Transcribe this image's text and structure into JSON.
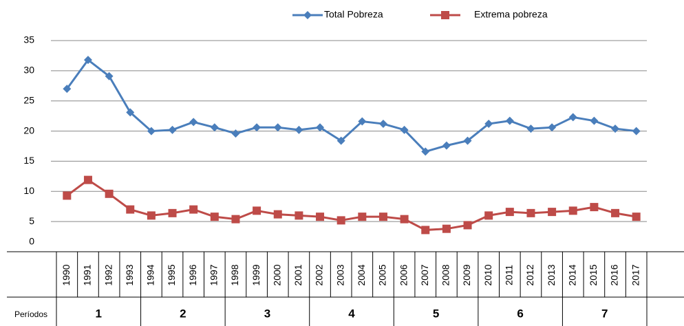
{
  "chart_data": {
    "type": "line",
    "categories": [
      "1990",
      "1991",
      "1992",
      "1993",
      "1994",
      "1995",
      "1996",
      "1997",
      "1998",
      "1999",
      "2000",
      "2001",
      "2002",
      "2003",
      "2004",
      "2005",
      "2006",
      "2007",
      "2008",
      "2009",
      "2010",
      "2011",
      "2012",
      "2013",
      "2014",
      "2015",
      "2016",
      "2017"
    ],
    "series": [
      {
        "name": "Total Pobreza",
        "color": "#4a7ebb",
        "marker": "diamond",
        "values": [
          27,
          31.8,
          29.1,
          23.1,
          20.0,
          20.2,
          21.5,
          20.6,
          19.6,
          20.6,
          20.6,
          20.2,
          20.6,
          18.4,
          21.6,
          21.2,
          20.2,
          16.6,
          17.6,
          18.4,
          21.2,
          21.7,
          20.4,
          20.6,
          22.3,
          21.7,
          20.4,
          20.0
        ]
      },
      {
        "name": "Extrema pobreza",
        "color": "#be4b48",
        "marker": "square",
        "values": [
          9.3,
          11.9,
          9.6,
          7.0,
          6.0,
          6.4,
          7.0,
          5.8,
          5.4,
          6.8,
          6.2,
          6.0,
          5.8,
          5.2,
          5.8,
          5.8,
          5.4,
          3.6,
          3.8,
          4.4,
          6.0,
          6.6,
          6.4,
          6.6,
          6.8,
          7.4,
          6.4,
          5.8
        ]
      }
    ],
    "ylim": [
      0,
      35
    ],
    "yticks": [
      0,
      5,
      10,
      15,
      20,
      25,
      30,
      35
    ],
    "grid": true,
    "legend": "top",
    "periods_label": "Períodos",
    "periods": [
      "1",
      "2",
      "3",
      "4",
      "5",
      "6",
      "7"
    ]
  }
}
